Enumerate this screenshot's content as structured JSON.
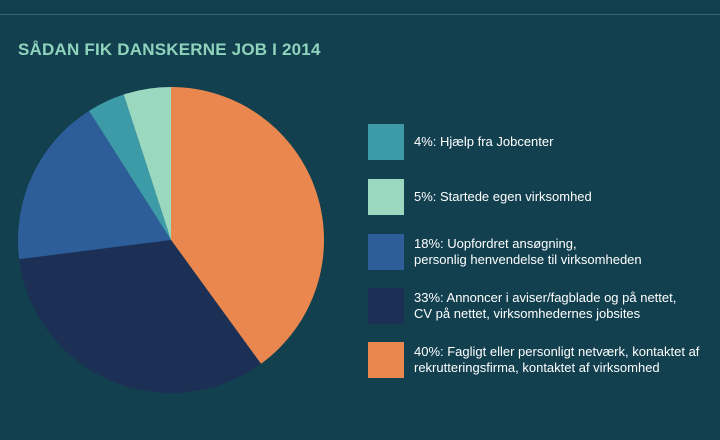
{
  "colors": {
    "background": "#12404f",
    "title": "#8fd3bd",
    "text": "#ffffff"
  },
  "chart_data": {
    "type": "pie",
    "title": "SÅDAN FIK DANSKERNE JOB I 2014",
    "slices": [
      {
        "value": 4,
        "label": "4%: Hjælp fra Jobcenter",
        "color": "#3c9ba7"
      },
      {
        "value": 5,
        "label": "5%: Startede egen virksomhed",
        "color": "#9bd8c0"
      },
      {
        "value": 18,
        "label": "18%: Uopfordret ansøgning,\npersonlig henvendelse til virksomheden",
        "color": "#2e5e99"
      },
      {
        "value": 33,
        "label": "33%: Annoncer i aviser/fagblade og på nettet,\nCV på nettet, virksomhedernes jobsites",
        "color": "#1c2f55"
      },
      {
        "value": 40,
        "label": "40%: Fagligt eller personligt netværk, kontaktet af\nrekrutteringsfirma, kontaktet af virksomhed",
        "color": "#e9874e"
      }
    ],
    "pie_order": [
      4,
      3,
      2,
      0,
      1
    ],
    "legend_position": "right"
  }
}
